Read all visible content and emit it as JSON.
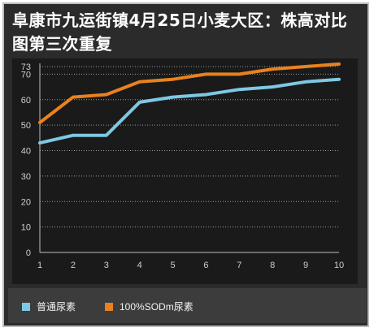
{
  "chart_data": {
    "type": "line",
    "title": "阜康市九运街镇4月25日小麦大区：株高对比图第三次重复",
    "xlabel": "",
    "ylabel": "",
    "x": [
      1,
      2,
      3,
      4,
      5,
      6,
      7,
      8,
      9,
      10
    ],
    "yticks": [
      0,
      10,
      20,
      30,
      40,
      50,
      60,
      70,
      73
    ],
    "ylim": [
      0,
      73
    ],
    "grid": true,
    "legend_position": "bottom",
    "series": [
      {
        "name": "普通尿素",
        "color": "#7ec8e3",
        "values": [
          43,
          46,
          46,
          59,
          61,
          62,
          64,
          65,
          67,
          68
        ]
      },
      {
        "name": "100%SODm尿素",
        "color": "#e8821e",
        "values": [
          51,
          61,
          62,
          67,
          68,
          70,
          70,
          72,
          73,
          74
        ]
      }
    ]
  }
}
